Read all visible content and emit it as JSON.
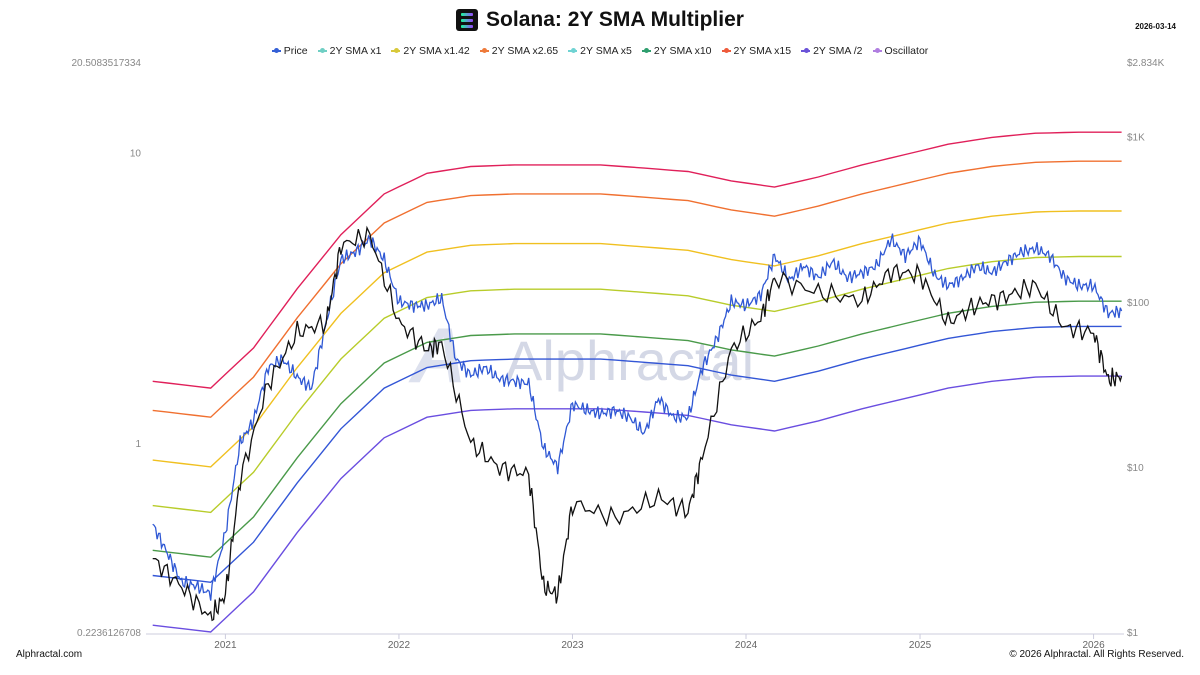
{
  "header": {
    "title": "Solana: 2Y SMA Multiplier",
    "date": "2026-03-14",
    "logo_icon": "solana-logo-icon"
  },
  "footer": {
    "left": "Alphractal.com",
    "right": "© 2026 Alphractal. All Rights Reserved."
  },
  "watermark": "Alphractal",
  "chart_data": {
    "type": "line",
    "title": "Solana: 2Y SMA Multiplier",
    "x_range": [
      "2020-08",
      "2026-03"
    ],
    "x_ticks": [
      "2021",
      "2022",
      "2023",
      "2024",
      "2025",
      "2026"
    ],
    "y_left": {
      "scale": "log",
      "range": [
        0.2236126708,
        20.5083517334
      ],
      "ticks": [
        "20.5083517334",
        "10",
        "1",
        "0.2236126708"
      ]
    },
    "y_right": {
      "scale": "log",
      "range": [
        1,
        2834
      ],
      "ticks": [
        "$2.834K",
        "$1K",
        "$100",
        "$10",
        "$1"
      ]
    },
    "legend": [
      {
        "name": "Price",
        "color": "#3560d6"
      },
      {
        "name": "2Y SMA x1",
        "color": "#6fcfc4"
      },
      {
        "name": "2Y SMA x1.42",
        "color": "#d8c93a"
      },
      {
        "name": "2Y SMA x2.65",
        "color": "#ee7a3a"
      },
      {
        "name": "2Y SMA x5",
        "color": "#6fd3d3"
      },
      {
        "name": "2Y SMA x10",
        "color": "#2e9e6e"
      },
      {
        "name": "2Y SMA x15",
        "color": "#ee5a3a"
      },
      {
        "name": "2Y SMA /2",
        "color": "#6a52d8"
      },
      {
        "name": "Oscillator",
        "color": "#b07ee0"
      }
    ],
    "colors": {
      "price": "#2f58d4",
      "oscillator": "#111111",
      "band_div2": "#6a4ee0",
      "band_x1": "#3356d6",
      "band_x1_42": "#4a9a4a",
      "band_x2_65": "#b8cc2a",
      "band_x5": "#f0c020",
      "band_x10": "#f07030",
      "band_x15": "#e0205a"
    },
    "price": [
      [
        "2020-08",
        4.5
      ],
      [
        "2020-09",
        3.0
      ],
      [
        "2020-10",
        2.0
      ],
      [
        "2020-11",
        1.9
      ],
      [
        "2020-12",
        1.7
      ],
      [
        "2021-01",
        4.0
      ],
      [
        "2021-02",
        14
      ],
      [
        "2021-03",
        19
      ],
      [
        "2021-04",
        40
      ],
      [
        "2021-05",
        45
      ],
      [
        "2021-06",
        35
      ],
      [
        "2021-07",
        30
      ],
      [
        "2021-08",
        75
      ],
      [
        "2021-09",
        180
      ],
      [
        "2021-10",
        200
      ],
      [
        "2021-11",
        240
      ],
      [
        "2021-12",
        180
      ],
      [
        "2022-01",
        100
      ],
      [
        "2022-02",
        95
      ],
      [
        "2022-03",
        95
      ],
      [
        "2022-04",
        105
      ],
      [
        "2022-05",
        45
      ],
      [
        "2022-06",
        36
      ],
      [
        "2022-07",
        40
      ],
      [
        "2022-08",
        34
      ],
      [
        "2022-09",
        33
      ],
      [
        "2022-10",
        32
      ],
      [
        "2022-11",
        13
      ],
      [
        "2022-12",
        10
      ],
      [
        "2023-01",
        24
      ],
      [
        "2023-02",
        22
      ],
      [
        "2023-03",
        21
      ],
      [
        "2023-04",
        22
      ],
      [
        "2023-05",
        20
      ],
      [
        "2023-06",
        16
      ],
      [
        "2023-07",
        26
      ],
      [
        "2023-08",
        20
      ],
      [
        "2023-09",
        20
      ],
      [
        "2023-10",
        40
      ],
      [
        "2023-11",
        60
      ],
      [
        "2023-12",
        100
      ],
      [
        "2024-01",
        95
      ],
      [
        "2024-02",
        110
      ],
      [
        "2024-03",
        190
      ],
      [
        "2024-04",
        135
      ],
      [
        "2024-05",
        165
      ],
      [
        "2024-06",
        140
      ],
      [
        "2024-07",
        175
      ],
      [
        "2024-08",
        140
      ],
      [
        "2024-09",
        150
      ],
      [
        "2024-10",
        165
      ],
      [
        "2024-11",
        240
      ],
      [
        "2024-12",
        190
      ],
      [
        "2025-01",
        235
      ],
      [
        "2025-02",
        145
      ],
      [
        "2025-03",
        125
      ],
      [
        "2025-04",
        140
      ],
      [
        "2025-05",
        165
      ],
      [
        "2025-06",
        150
      ],
      [
        "2025-07",
        175
      ],
      [
        "2025-08",
        200
      ],
      [
        "2025-09",
        210
      ],
      [
        "2025-10",
        190
      ],
      [
        "2025-11",
        140
      ],
      [
        "2025-12",
        125
      ],
      [
        "2026-01",
        125
      ],
      [
        "2026-02",
        85
      ],
      [
        "2026-03",
        88
      ]
    ],
    "sma_2y": [
      [
        "2020-08",
        2.2
      ],
      [
        "2020-12",
        2.0
      ],
      [
        "2021-03",
        3.5
      ],
      [
        "2021-06",
        8
      ],
      [
        "2021-09",
        17
      ],
      [
        "2021-12",
        30
      ],
      [
        "2022-03",
        40
      ],
      [
        "2022-06",
        44
      ],
      [
        "2022-09",
        45
      ],
      [
        "2022-12",
        45
      ],
      [
        "2023-03",
        45
      ],
      [
        "2023-06",
        43
      ],
      [
        "2023-09",
        41
      ],
      [
        "2023-12",
        36
      ],
      [
        "2024-03",
        33
      ],
      [
        "2024-06",
        38
      ],
      [
        "2024-09",
        45
      ],
      [
        "2024-12",
        52
      ],
      [
        "2025-03",
        60
      ],
      [
        "2025-06",
        66
      ],
      [
        "2025-09",
        70
      ],
      [
        "2025-12",
        71
      ],
      [
        "2026-03",
        71
      ]
    ],
    "band_multipliers": {
      "band_div2": 0.5,
      "band_x1": 1,
      "band_x1_42": 1.42,
      "band_x2_65": 2.65,
      "band_x5": 5,
      "band_x10": 10,
      "band_x15": 15
    },
    "oscillator": [
      [
        "2020-08",
        0.4
      ],
      [
        "2020-10",
        0.32
      ],
      [
        "2020-12",
        0.25
      ],
      [
        "2021-01",
        0.3
      ],
      [
        "2021-02",
        0.75
      ],
      [
        "2021-04",
        1.6
      ],
      [
        "2021-06",
        2.4
      ],
      [
        "2021-08",
        2.6
      ],
      [
        "2021-09",
        4.8
      ],
      [
        "2021-11",
        5.2
      ],
      [
        "2022-01",
        2.6
      ],
      [
        "2022-03",
        2.1
      ],
      [
        "2022-04",
        2.2
      ],
      [
        "2022-06",
        1.0
      ],
      [
        "2022-08",
        0.82
      ],
      [
        "2022-10",
        0.78
      ],
      [
        "2022-11",
        0.32
      ],
      [
        "2022-12",
        0.3
      ],
      [
        "2023-01",
        0.62
      ],
      [
        "2023-04",
        0.55
      ],
      [
        "2023-07",
        0.65
      ],
      [
        "2023-09",
        0.58
      ],
      [
        "2023-10",
        0.9
      ],
      [
        "2023-12",
        2.1
      ],
      [
        "2024-02",
        2.7
      ],
      [
        "2024-03",
        3.7
      ],
      [
        "2024-06",
        3.3
      ],
      [
        "2024-09",
        3.1
      ],
      [
        "2024-11",
        3.9
      ],
      [
        "2025-01",
        3.8
      ],
      [
        "2025-03",
        2.6
      ],
      [
        "2025-05",
        3.0
      ],
      [
        "2025-07",
        3.2
      ],
      [
        "2025-09",
        3.5
      ],
      [
        "2025-11",
        2.5
      ],
      [
        "2026-01",
        2.4
      ],
      [
        "2026-02",
        1.65
      ],
      [
        "2026-03",
        1.7
      ]
    ]
  }
}
